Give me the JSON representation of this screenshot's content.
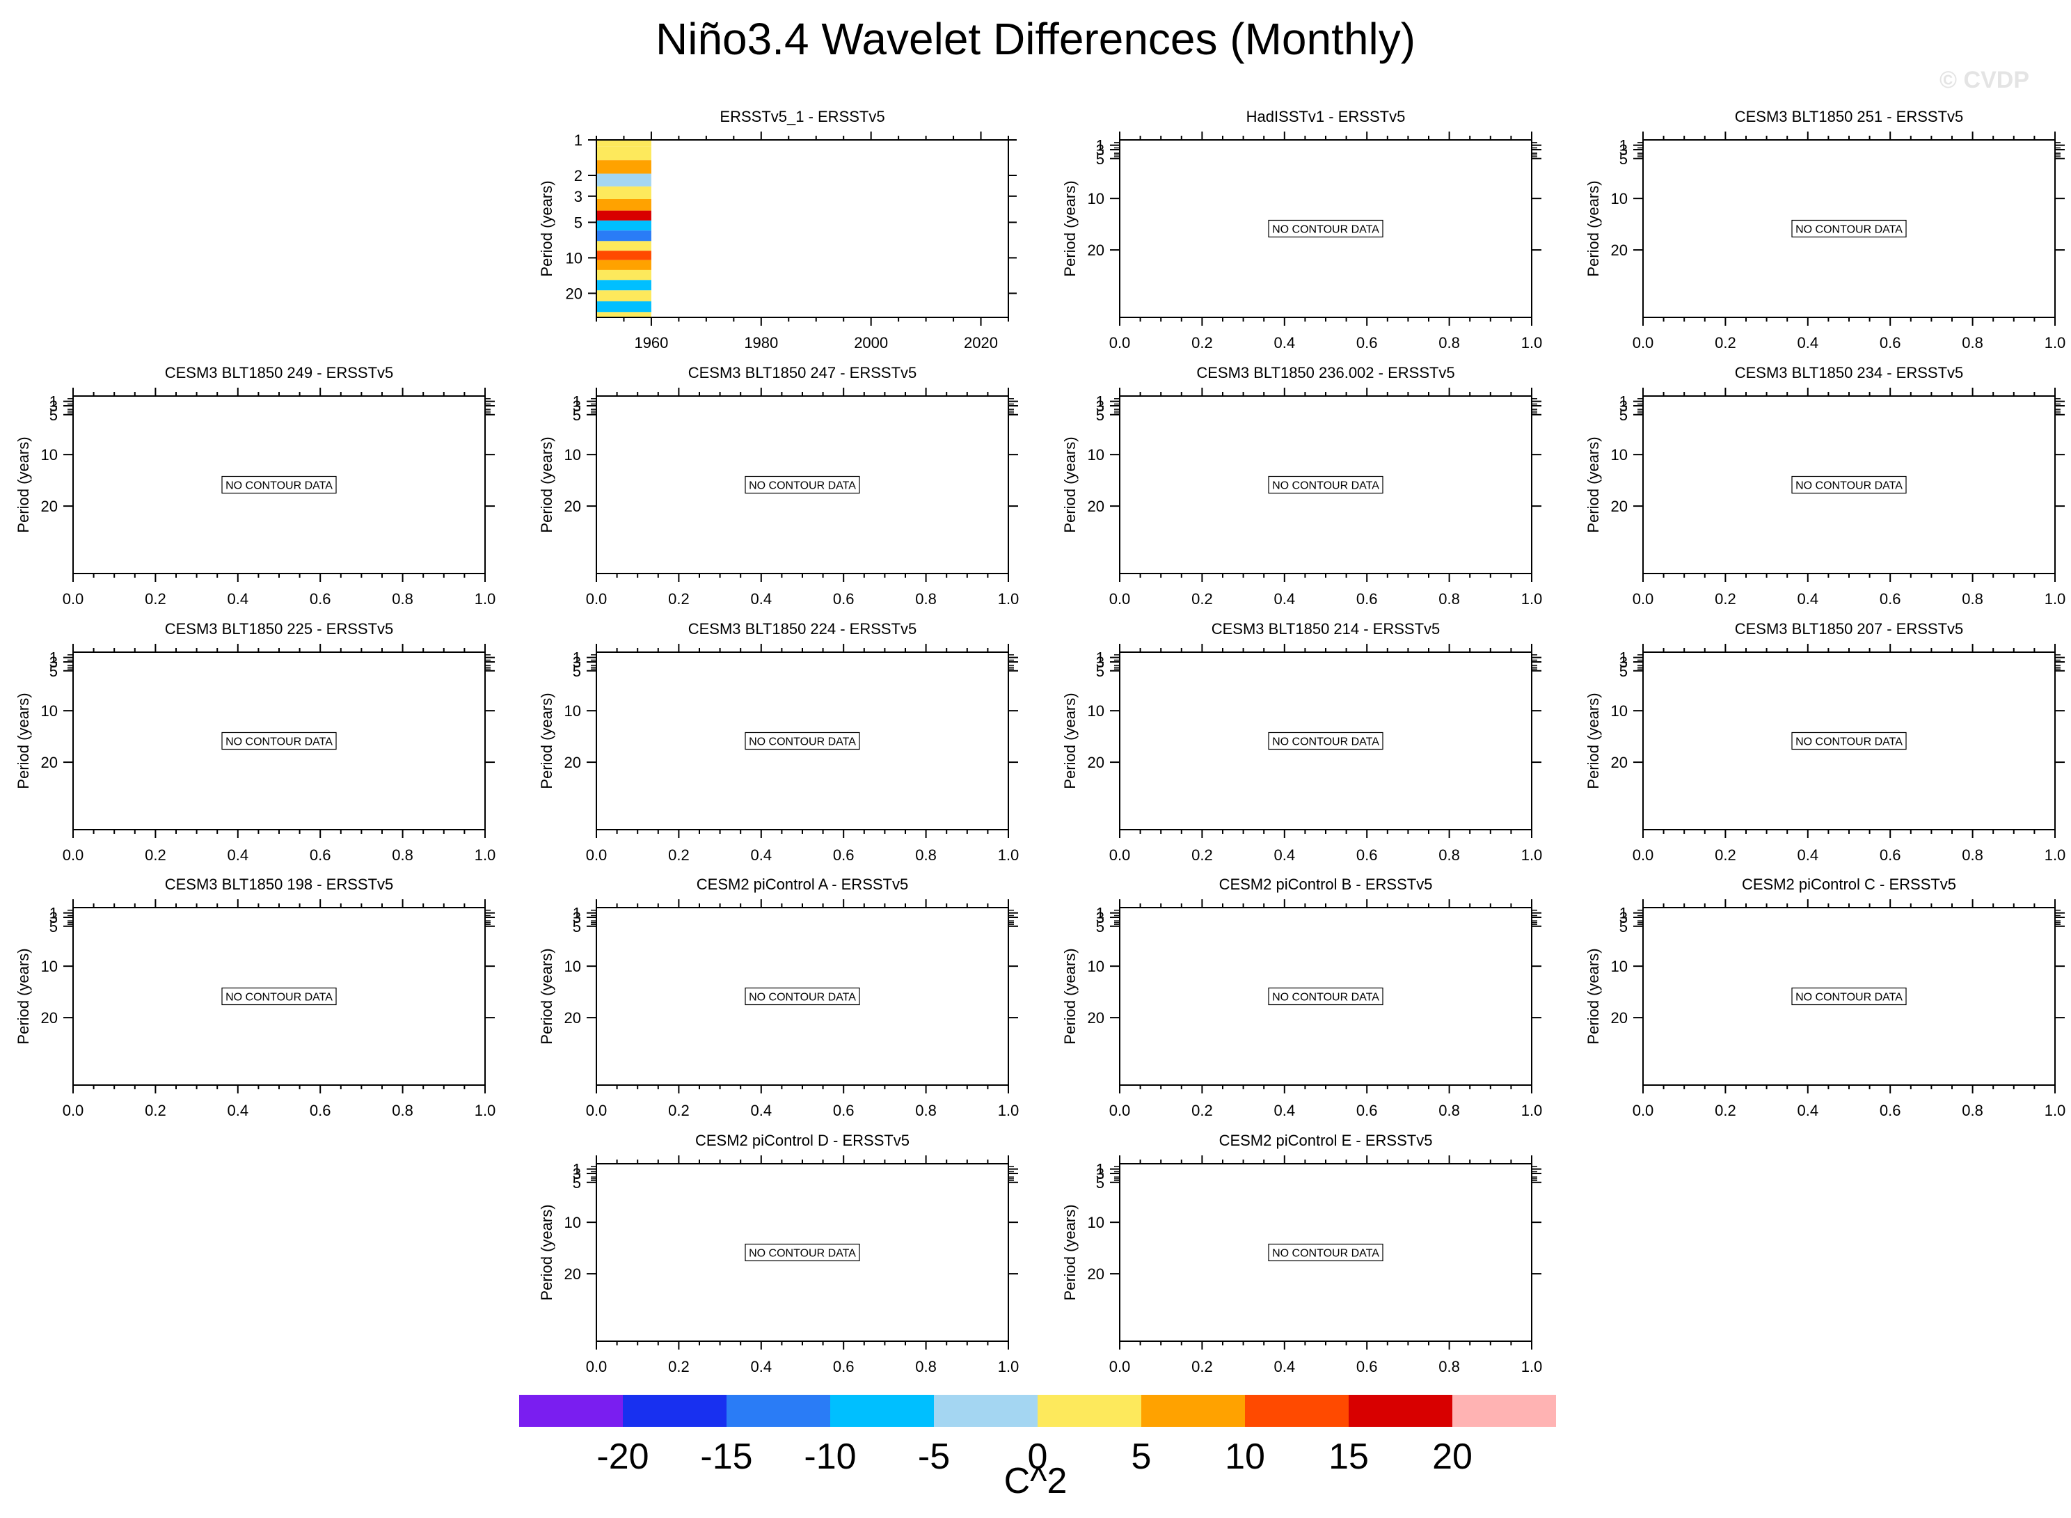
{
  "title": "Niño3.4 Wavelet Differences (Monthly)",
  "watermark": "© CVDP",
  "colorbar": {
    "units": "C^2",
    "colors": [
      "#7a1ef0",
      "#1830f0",
      "#2a7cf6",
      "#00bfff",
      "#a4d6f2",
      "#fde95c",
      "#ffa200",
      "#ff4a00",
      "#d80000",
      "#ffb3b3"
    ],
    "tick_labels": [
      "-20",
      "-15",
      "-10",
      "-5",
      "0",
      "5",
      "10",
      "15",
      "20"
    ]
  },
  "chart_data": [
    {
      "type": "heatmap",
      "title": "ERSSTv5_1 - ERSSTv5",
      "ylabel": "Period (years)",
      "xlabel": "",
      "x_range": [
        1950,
        2025
      ],
      "x_ticks": [
        1960,
        1980,
        2000,
        2020
      ],
      "y_ticks": [
        1,
        2,
        3,
        5,
        10,
        20
      ],
      "y_scale": "log",
      "y_reversed": true,
      "data_x_range": [
        1950,
        1960
      ],
      "bands": [
        {
          "period": 1.0,
          "value": 2.5
        },
        {
          "period": 1.3,
          "value": 0.0
        },
        {
          "period": 1.7,
          "value": 7.5
        },
        {
          "period": 2.2,
          "value": -2.5
        },
        {
          "period": 2.8,
          "value": 2.5
        },
        {
          "period": 3.6,
          "value": 7.5
        },
        {
          "period": 4.4,
          "value": 17.5
        },
        {
          "period": 5.3,
          "value": -7.5
        },
        {
          "period": 6.5,
          "value": -12.5
        },
        {
          "period": 8.0,
          "value": 2.5
        },
        {
          "period": 9.5,
          "value": 12.5
        },
        {
          "period": 11.5,
          "value": 7.5
        },
        {
          "period": 14.0,
          "value": 0.0
        },
        {
          "period": 17.0,
          "value": -7.5
        },
        {
          "period": 21.0,
          "value": 2.5
        },
        {
          "period": 26.0,
          "value": -7.5
        },
        {
          "period": 32.0,
          "value": 0.0
        }
      ]
    },
    {
      "type": "heatmap",
      "title": "HadISSTv1 - ERSSTv5",
      "ylabel": "Period (years)",
      "x_range": [
        0.0,
        1.0
      ],
      "y_ticks": [
        1,
        3,
        5,
        10,
        20
      ],
      "note": "NO CONTOUR DATA"
    },
    {
      "type": "heatmap",
      "title": "CESM3 BLT1850 251 - ERSSTv5",
      "ylabel": "Period (years)",
      "x_range": [
        0.0,
        1.0
      ],
      "y_ticks": [
        1,
        3,
        5,
        10,
        20
      ],
      "note": "NO CONTOUR DATA"
    },
    {
      "type": "heatmap",
      "title": "CESM3 BLT1850 249 - ERSSTv5",
      "ylabel": "Period (years)",
      "x_range": [
        0.0,
        1.0
      ],
      "y_ticks": [
        1,
        3,
        5,
        10,
        20
      ],
      "note": "NO CONTOUR DATA"
    },
    {
      "type": "heatmap",
      "title": "CESM3 BLT1850 247 - ERSSTv5",
      "ylabel": "Period (years)",
      "x_range": [
        0.0,
        1.0
      ],
      "y_ticks": [
        1,
        3,
        5,
        10,
        20
      ],
      "note": "NO CONTOUR DATA"
    },
    {
      "type": "heatmap",
      "title": "CESM3 BLT1850 236.002 - ERSSTv5",
      "ylabel": "Period (years)",
      "x_range": [
        0.0,
        1.0
      ],
      "y_ticks": [
        1,
        3,
        5,
        10,
        20
      ],
      "note": "NO CONTOUR DATA"
    },
    {
      "type": "heatmap",
      "title": "CESM3 BLT1850 234 - ERSSTv5",
      "ylabel": "Period (years)",
      "x_range": [
        0.0,
        1.0
      ],
      "y_ticks": [
        1,
        3,
        5,
        10,
        20
      ],
      "note": "NO CONTOUR DATA"
    },
    {
      "type": "heatmap",
      "title": "CESM3 BLT1850 225 - ERSSTv5",
      "ylabel": "Period (years)",
      "x_range": [
        0.0,
        1.0
      ],
      "y_ticks": [
        1,
        3,
        5,
        10,
        20
      ],
      "note": "NO CONTOUR DATA"
    },
    {
      "type": "heatmap",
      "title": "CESM3 BLT1850 224 - ERSSTv5",
      "ylabel": "Period (years)",
      "x_range": [
        0.0,
        1.0
      ],
      "y_ticks": [
        1,
        3,
        5,
        10,
        20
      ],
      "note": "NO CONTOUR DATA"
    },
    {
      "type": "heatmap",
      "title": "CESM3 BLT1850 214 - ERSSTv5",
      "ylabel": "Period (years)",
      "x_range": [
        0.0,
        1.0
      ],
      "y_ticks": [
        1,
        3,
        5,
        10,
        20
      ],
      "note": "NO CONTOUR DATA"
    },
    {
      "type": "heatmap",
      "title": "CESM3 BLT1850 207 - ERSSTv5",
      "ylabel": "Period (years)",
      "x_range": [
        0.0,
        1.0
      ],
      "y_ticks": [
        1,
        3,
        5,
        10,
        20
      ],
      "note": "NO CONTOUR DATA"
    },
    {
      "type": "heatmap",
      "title": "CESM3 BLT1850 198 - ERSSTv5",
      "ylabel": "Period (years)",
      "x_range": [
        0.0,
        1.0
      ],
      "y_ticks": [
        1,
        3,
        5,
        10,
        20
      ],
      "note": "NO CONTOUR DATA"
    },
    {
      "type": "heatmap",
      "title": "CESM2 piControl A - ERSSTv5",
      "ylabel": "Period (years)",
      "x_range": [
        0.0,
        1.0
      ],
      "y_ticks": [
        1,
        3,
        5,
        10,
        20
      ],
      "note": "NO CONTOUR DATA"
    },
    {
      "type": "heatmap",
      "title": "CESM2 piControl B - ERSSTv5",
      "ylabel": "Period (years)",
      "x_range": [
        0.0,
        1.0
      ],
      "y_ticks": [
        1,
        3,
        5,
        10,
        20
      ],
      "note": "NO CONTOUR DATA"
    },
    {
      "type": "heatmap",
      "title": "CESM2 piControl C - ERSSTv5",
      "ylabel": "Period (years)",
      "x_range": [
        0.0,
        1.0
      ],
      "y_ticks": [
        1,
        3,
        5,
        10,
        20
      ],
      "note": "NO CONTOUR DATA"
    },
    {
      "type": "heatmap",
      "title": "CESM2 piControl D - ERSSTv5",
      "ylabel": "Period (years)",
      "x_range": [
        0.0,
        1.0
      ],
      "y_ticks": [
        1,
        3,
        5,
        10,
        20
      ],
      "note": "NO CONTOUR DATA"
    },
    {
      "type": "heatmap",
      "title": "CESM2 piControl E - ERSSTv5",
      "ylabel": "Period (years)",
      "x_range": [
        0.0,
        1.0
      ],
      "y_ticks": [
        1,
        3,
        5,
        10,
        20
      ],
      "note": "NO CONTOUR DATA"
    }
  ]
}
